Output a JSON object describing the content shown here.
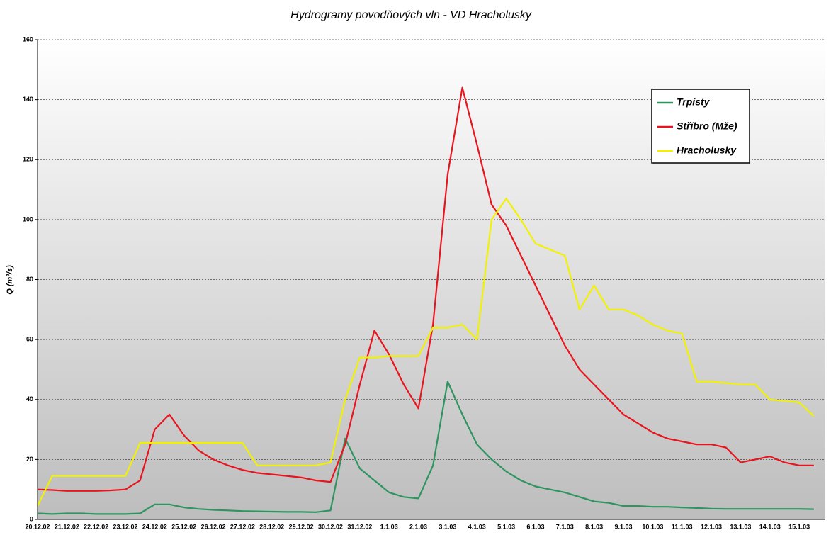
{
  "chart_data": {
    "type": "line",
    "title": "Hydrogramy povodňových vln - VD Hracholusky",
    "y_label": "Q (m³/s)",
    "categories": [
      "20.12.02",
      null,
      "21.12.02",
      null,
      "22.12.02",
      null,
      "23.12.02",
      null,
      "24.12.02",
      null,
      "25.12.02",
      null,
      "26.12.02",
      null,
      "27.12.02",
      null,
      "28.12.02",
      null,
      "29.12.02",
      null,
      "30.12.02",
      null,
      "31.12.02",
      null,
      "1.1.03",
      null,
      "2.1.03",
      null,
      "3.1.03",
      null,
      "4.1.03",
      null,
      "5.1.03",
      null,
      "6.1.03",
      null,
      "7.1.03",
      null,
      "8.1.03",
      null,
      "9.1.03",
      null,
      "10.1.03",
      null,
      "11.1.03",
      null,
      "12.1.03",
      null,
      "13.1.03",
      null,
      "14.1.03",
      null,
      "15.1.03",
      null
    ],
    "series": [
      {
        "name": "Trpísty",
        "color": "#2e9460",
        "values": [
          2,
          1.8,
          2,
          2,
          1.8,
          1.8,
          1.8,
          2,
          5,
          5,
          4,
          3.5,
          3.2,
          3,
          2.8,
          2.7,
          2.6,
          2.5,
          2.5,
          2.4,
          3,
          27,
          17,
          13,
          9,
          7.5,
          7,
          18,
          46,
          35,
          25,
          20,
          16,
          13,
          11,
          10,
          9,
          7.5,
          6,
          5.5,
          4.5,
          4.5,
          4.2,
          4.2,
          4,
          3.8,
          3.6,
          3.5,
          3.5,
          3.5,
          3.5,
          3.5,
          3.5,
          3.4
        ]
      },
      {
        "name": "Stříbro (Mže)",
        "color": "#e8141e",
        "values": [
          10,
          9.8,
          9.5,
          9.5,
          9.5,
          9.7,
          10,
          13,
          30,
          35,
          28,
          23,
          20,
          18,
          16.5,
          15.5,
          15,
          14.5,
          14,
          13,
          12.5,
          25,
          45,
          63,
          55,
          45,
          37,
          65,
          115,
          144,
          125,
          105,
          98,
          88,
          78,
          68,
          58,
          50,
          45,
          40,
          35,
          32,
          29,
          27,
          26,
          25,
          25,
          24,
          19,
          20,
          21,
          19,
          18,
          18
        ]
      },
      {
        "name": "Hracholusky",
        "color": "#f2f200",
        "values": [
          4.5,
          14.5,
          14.5,
          14.5,
          14.5,
          14.5,
          14.5,
          25.5,
          25.5,
          25.5,
          25.5,
          25.5,
          25.5,
          25.5,
          25.5,
          18,
          18,
          18,
          18,
          18,
          19,
          40,
          54,
          54,
          54.5,
          54.5,
          54.5,
          64,
          64,
          65,
          60,
          100,
          107,
          100,
          92,
          90,
          88,
          70,
          78,
          70,
          70,
          68,
          65,
          63,
          62,
          46,
          46,
          45.5,
          45,
          45,
          40,
          39.5,
          39,
          34.5
        ]
      }
    ],
    "ylim": [
      0,
      160
    ],
    "yticks": [
      0,
      20,
      40,
      60,
      80,
      100,
      120,
      140,
      160
    ],
    "grid": true,
    "legend": "upper right"
  }
}
